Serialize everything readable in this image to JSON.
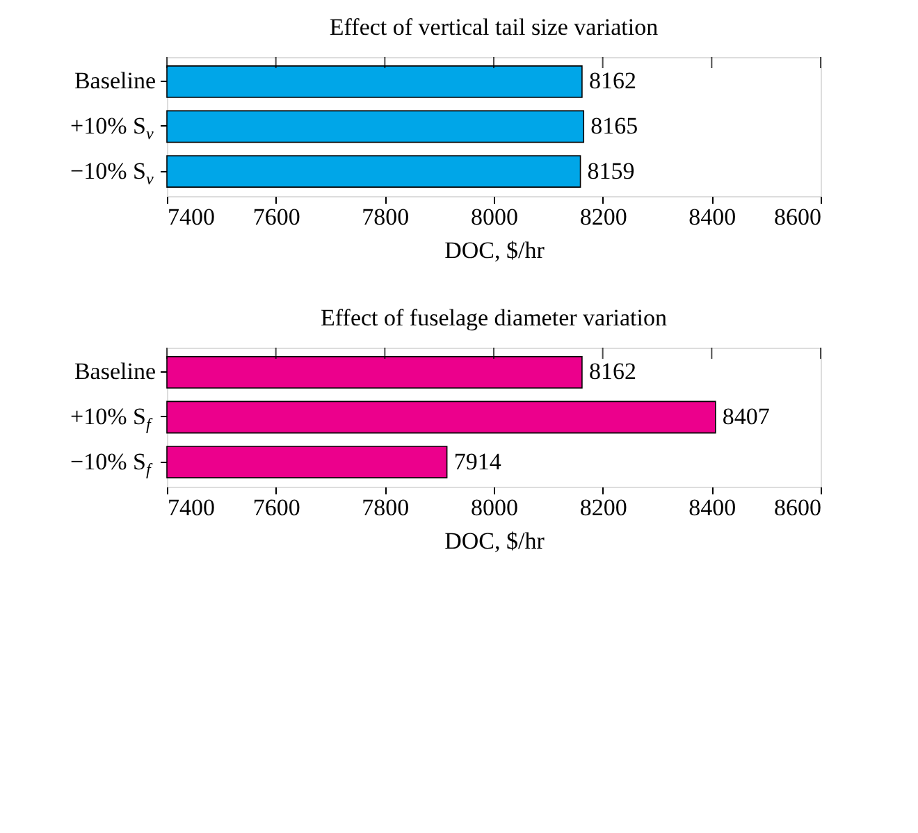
{
  "chart_data": [
    {
      "type": "bar",
      "orientation": "horizontal",
      "title": "Effect of vertical tail size variation",
      "xlabel": "DOC, $/hr",
      "categories": [
        "Baseline",
        "+10% S$_{v}$",
        "−10% S$_{v}$"
      ],
      "series": [
        {
          "color": "#00a6e8",
          "values": [
            8162,
            8165,
            8159
          ]
        }
      ],
      "xlim": [
        7400,
        8600
      ],
      "xticks": [
        7400,
        7600,
        7800,
        8000,
        8200,
        8400,
        8600
      ],
      "data_labels": true,
      "grid": false,
      "legend": false
    },
    {
      "type": "bar",
      "orientation": "horizontal",
      "title": "Effect of fuselage diameter variation",
      "xlabel": "DOC, $/hr",
      "categories": [
        "Baseline",
        "+10% S$_{f}$",
        "−10% S$_{f}$"
      ],
      "series": [
        {
          "color": "#ec008c",
          "values": [
            8162,
            8407,
            7914
          ]
        }
      ],
      "xlim": [
        7400,
        8600
      ],
      "xticks": [
        7400,
        7600,
        7800,
        8000,
        8200,
        8400,
        8600
      ],
      "data_labels": true,
      "grid": false,
      "legend": false
    }
  ]
}
